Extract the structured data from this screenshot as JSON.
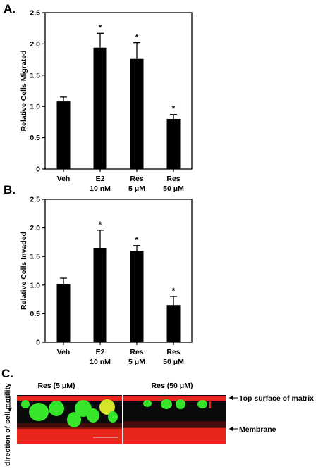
{
  "panels": {
    "a_label": "A.",
    "b_label": "B.",
    "c_label": "C."
  },
  "chart_data": [
    {
      "type": "bar",
      "panel": "A.",
      "ylabel": "Relative Cells Migrated",
      "ylim": [
        0,
        2.5
      ],
      "yticks": [
        "0",
        "0.5",
        "1.0",
        "1.5",
        "2.0",
        "2.5"
      ],
      "ytick_values": [
        0,
        0.5,
        1.0,
        1.5,
        2.0,
        2.5
      ],
      "categories": [
        {
          "line1": "Veh",
          "line2": ""
        },
        {
          "line1": "E2",
          "line2": "10 nM"
        },
        {
          "line1": "Res",
          "line2": "5 μM"
        },
        {
          "line1": "Res",
          "line2": "50 μM"
        }
      ],
      "values": [
        1.08,
        1.94,
        1.76,
        0.8
      ],
      "errors": [
        0.07,
        0.23,
        0.26,
        0.07
      ],
      "significance": [
        "",
        "*",
        "*",
        "*"
      ],
      "grid": false
    },
    {
      "type": "bar",
      "panel": "B.",
      "ylabel": "Relative Cells Invaded",
      "ylim": [
        0,
        2.5
      ],
      "yticks": [
        "0",
        "0.5",
        "1.0",
        "1.5",
        "2.0",
        "2.5"
      ],
      "ytick_values": [
        0,
        0.5,
        1.0,
        1.5,
        2.0,
        2.5
      ],
      "categories": [
        {
          "line1": "Veh",
          "line2": ""
        },
        {
          "line1": "E2",
          "line2": "10 nM"
        },
        {
          "line1": "Res",
          "line2": "5 μM"
        },
        {
          "line1": "Res",
          "line2": "50 μM"
        }
      ],
      "values": [
        1.02,
        1.65,
        1.59,
        0.65
      ],
      "errors": [
        0.1,
        0.31,
        0.1,
        0.15
      ],
      "significance": [
        "",
        "*",
        "*",
        "*"
      ],
      "grid": false
    }
  ],
  "micrograph": {
    "vertical_label": "direction of cell motility",
    "left_title": "Res (5 μM)",
    "right_title": "Res (50 μM)",
    "annotation_top": "Top surface of matrix",
    "annotation_bottom": "Membrane",
    "colors": {
      "matrix": "#e8261c",
      "background": "#0a0a0a",
      "cells": "#35e62a",
      "cells_yellow": "#d7e52a"
    }
  }
}
